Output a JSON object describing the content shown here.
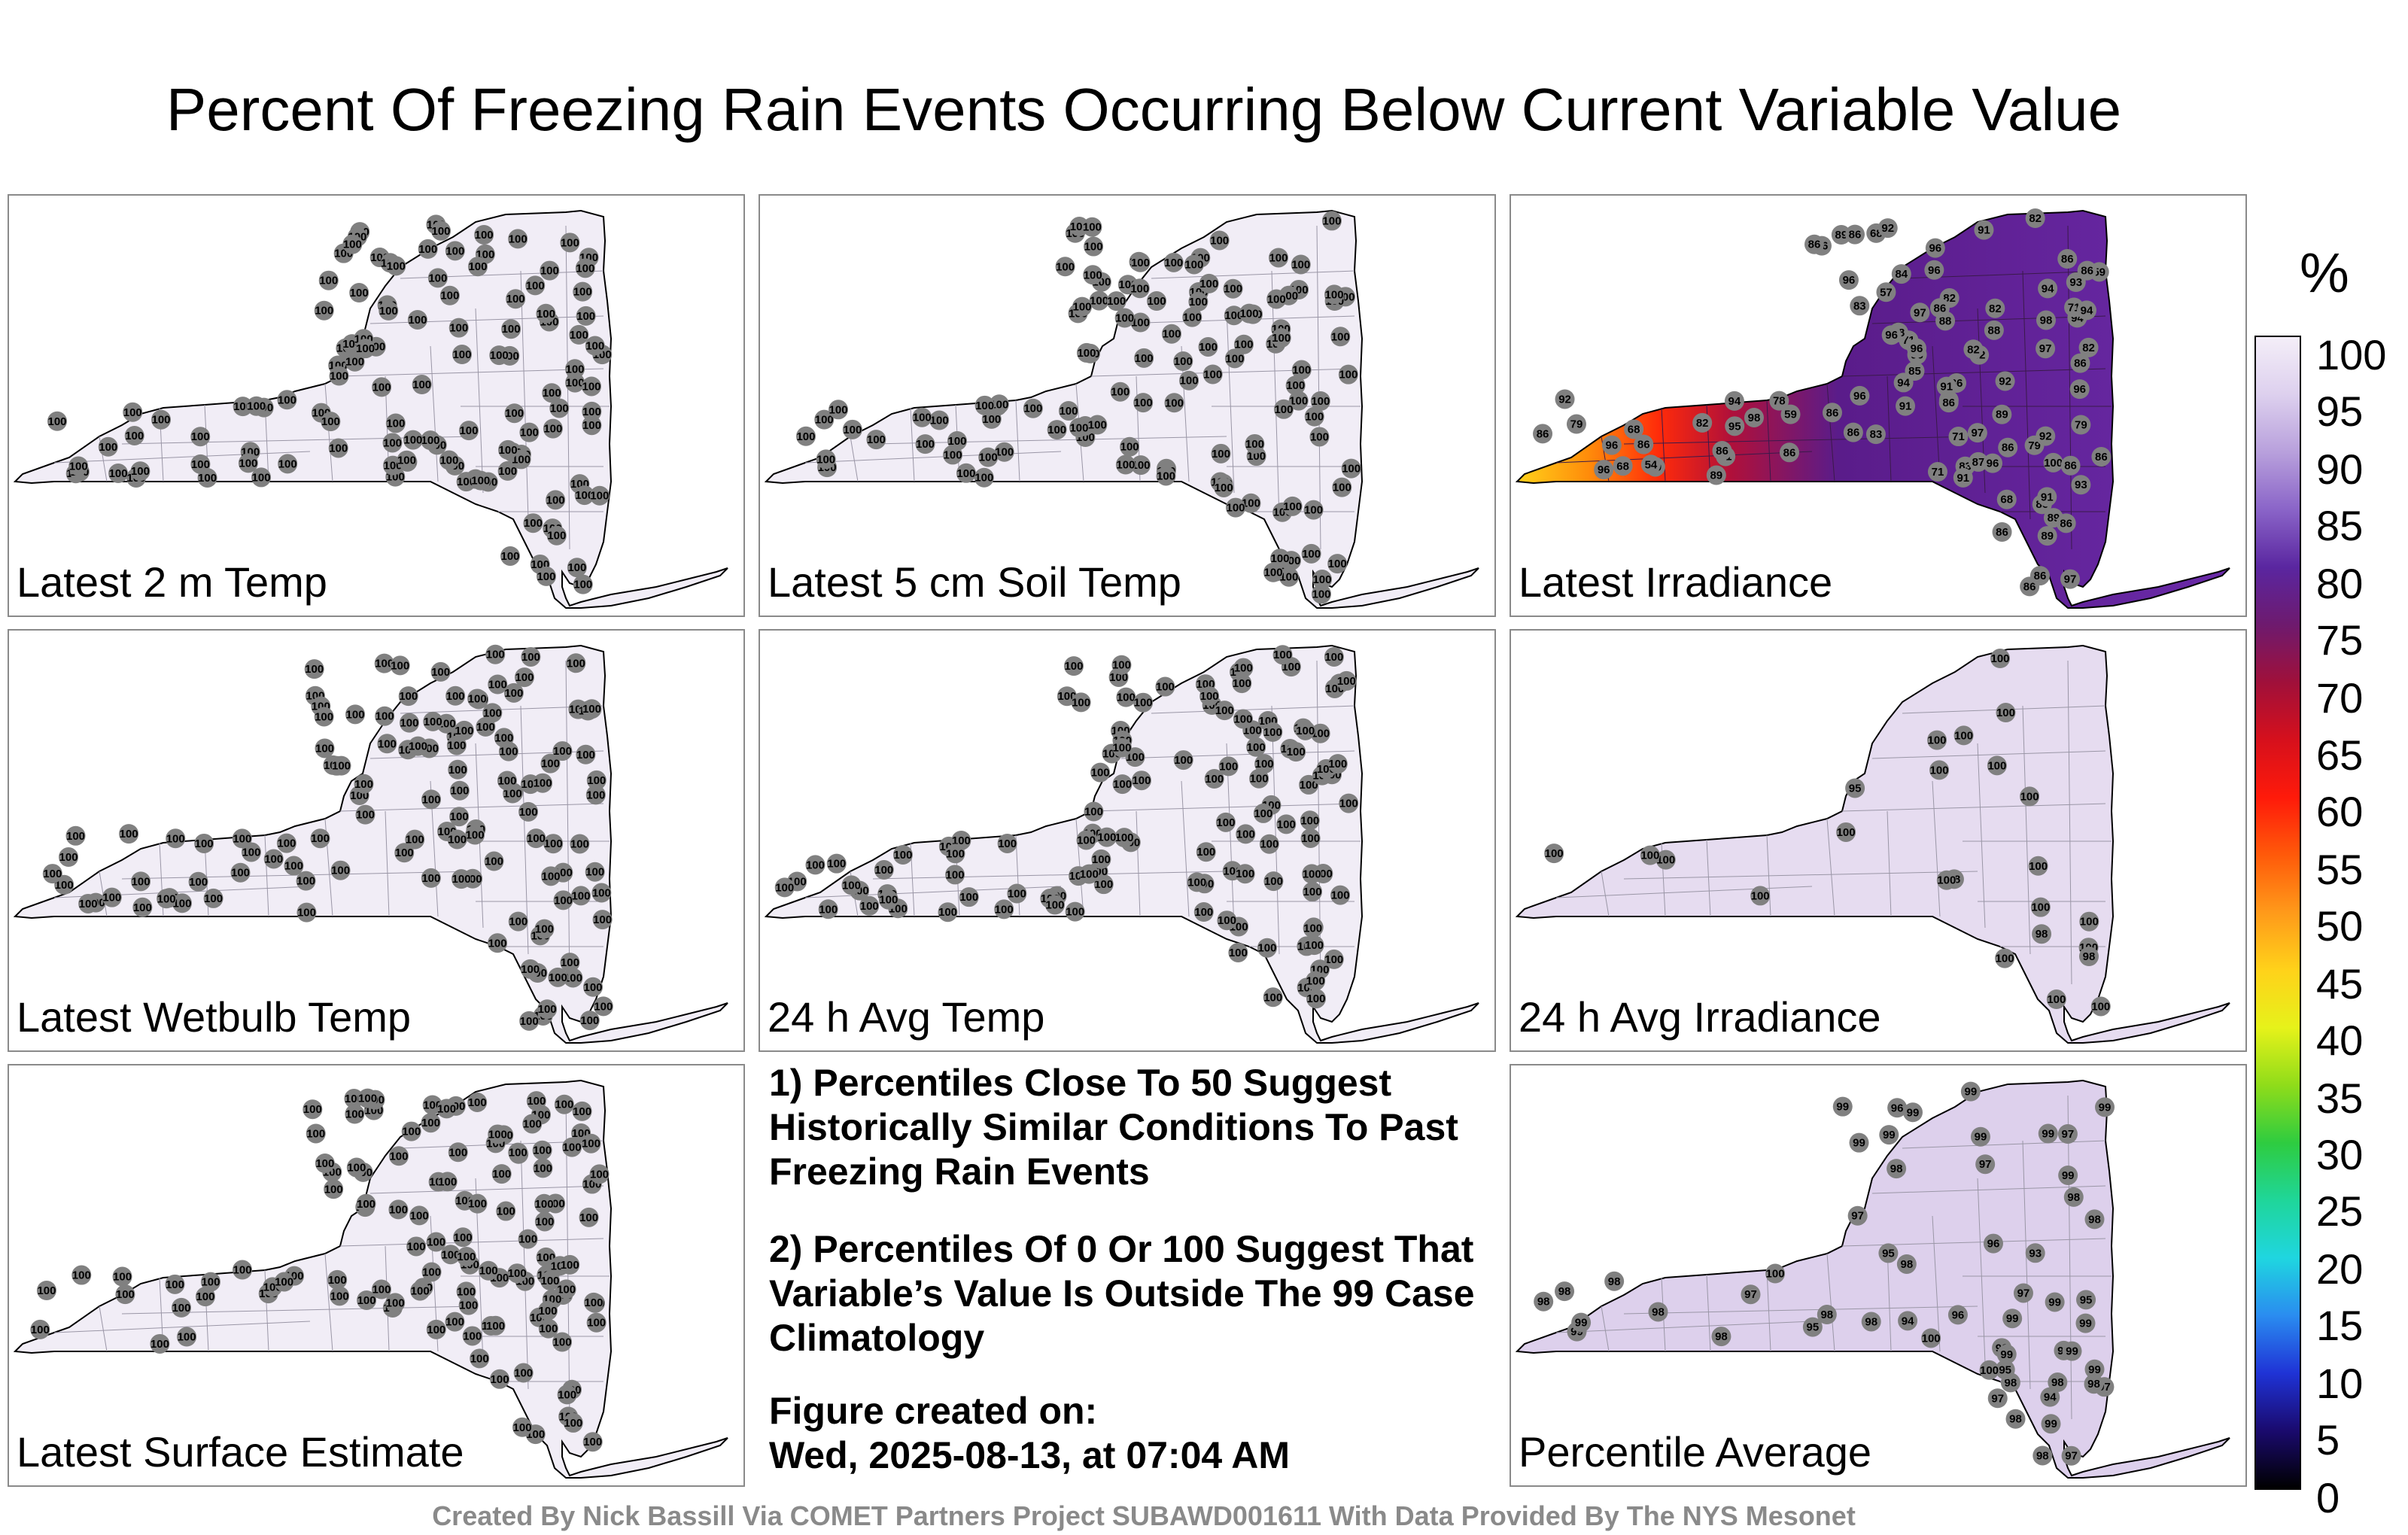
{
  "title": "Percent Of Freezing Rain Events Occurring Below Current Variable Value",
  "credit": "Created By Nick Bassill Via COMET Partners Project SUBAWD001611 With Data Provided By The NYS Mesonet",
  "colorbar": {
    "unit": "%",
    "ticks": [
      "100",
      "95",
      "90",
      "85",
      "80",
      "75",
      "70",
      "65",
      "60",
      "55",
      "50",
      "45",
      "40",
      "35",
      "30",
      "25",
      "20",
      "15",
      "10",
      "5",
      "0"
    ],
    "colors": [
      "#000000",
      "#1a0a6e",
      "#1f33d6",
      "#2a8cf0",
      "#1fd6e0",
      "#1fd69a",
      "#2ecc40",
      "#8fdc1a",
      "#e6f21a",
      "#ffd21a",
      "#ff9a1a",
      "#ff5a0a",
      "#ff1a0a",
      "#d6101c",
      "#a0103a",
      "#6e1a6e",
      "#5a26a0",
      "#8a64c8",
      "#b8a0dc",
      "#ddd0ee",
      "#f4eef8"
    ]
  },
  "notes": {
    "line1": "1) Percentiles Close To 50 Suggest Historically Similar Conditions To Past Freezing Rain Events",
    "line2": "2) Percentiles Of 0 Or 100 Suggest That Variable’s Value Is Outside The 99 Case Climatology",
    "fig_label": "Figure created on:",
    "fig_date": "Wed, 2025-08-13, at 07:04 AM"
  },
  "panels": [
    {
      "label": "Latest 2 m Temp",
      "mode": "uniform",
      "value": "100",
      "fill": "#f1edf6"
    },
    {
      "label": "Latest 5 cm Soil Temp",
      "mode": "uniform",
      "value": "100",
      "fill": "#f1edf6"
    },
    {
      "label": "Latest Irradiance",
      "mode": "gradient",
      "fill": "#6a1d8c",
      "values": [
        "86",
        "97",
        "86",
        "82",
        "86",
        "92",
        "89",
        "86",
        "82",
        "93",
        "86",
        "85",
        "82",
        "89",
        "86",
        "82",
        "86",
        "92",
        "86",
        "79",
        "84",
        "82",
        "83",
        "91",
        "94",
        "71",
        "68",
        "71",
        "82",
        "83",
        "71",
        "91",
        "96",
        "88",
        "89",
        "100",
        "59",
        "83",
        "57",
        "68",
        "96",
        "86",
        "92",
        "96",
        "87",
        "89",
        "96",
        "86",
        "60",
        "59",
        "78",
        "79",
        "82",
        "88",
        "94",
        "91",
        "96",
        "93",
        "97",
        "92",
        "96",
        "68",
        "86",
        "71",
        "98",
        "86",
        "96",
        "96",
        "86",
        "89",
        "95",
        "97",
        "54",
        "68",
        "79",
        "96",
        "86",
        "86",
        "94",
        "86",
        "98",
        "86",
        "97",
        "94",
        "96",
        "86",
        "86",
        "96",
        "91",
        "86",
        "86",
        "94",
        "96",
        "91",
        "96",
        "91",
        "86",
        "98"
      ]
    },
    {
      "label": "Latest Wetbulb Temp",
      "mode": "uniform",
      "value": "100",
      "fill": "#f1edf6"
    },
    {
      "label": "24 h Avg Temp",
      "mode": "uniform",
      "value": "100",
      "fill": "#f1edf6"
    },
    {
      "label": "24 h Avg Irradiance",
      "mode": "mixed",
      "fill": "#e6dcf0",
      "values": [
        "100",
        "100",
        "98",
        "100",
        "100",
        "100",
        "95",
        "100",
        "100",
        "100",
        "98",
        "100",
        "100",
        "98",
        "100",
        "100",
        "100",
        "100",
        "100",
        "100",
        "100",
        "100",
        "100",
        "100"
      ]
    },
    {
      "label": "Latest Surface Estimate",
      "mode": "uniform",
      "value": "100",
      "fill": "#f1edf6"
    },
    {
      "label": "Percentile Average",
      "mode": "mixed2",
      "fill": "#ddd0ec",
      "values": [
        "98",
        "98",
        "98",
        "97",
        "99",
        "98",
        "97",
        "99",
        "98",
        "97",
        "98",
        "99",
        "96",
        "95",
        "96",
        "100",
        "97",
        "98",
        "99",
        "94",
        "97",
        "97",
        "97",
        "99",
        "98",
        "99",
        "99",
        "99",
        "100",
        "94",
        "95",
        "98",
        "96",
        "98",
        "98",
        "99",
        "99",
        "99",
        "95",
        "93",
        "95",
        "97",
        "99",
        "98",
        "100",
        "98",
        "99",
        "99",
        "99",
        "98",
        "99",
        "99",
        "99",
        "99",
        "98",
        "98",
        "99"
      ]
    }
  ]
}
